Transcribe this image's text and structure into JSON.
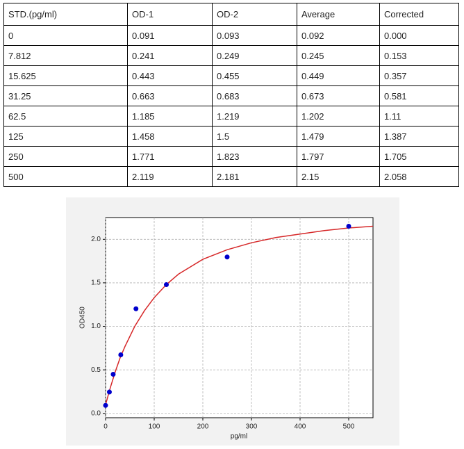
{
  "table": {
    "header": [
      "STD.(pg/ml)",
      "OD-1",
      "OD-2",
      "Average",
      "Corrected"
    ],
    "rows": [
      [
        "0",
        "0.091",
        "0.093",
        "0.092",
        "0.000"
      ],
      [
        "7.812",
        "0.241",
        "0.249",
        "0.245",
        "0.153"
      ],
      [
        "15.625",
        "0.443",
        "0.455",
        "0.449",
        "0.357"
      ],
      [
        "31.25",
        "0.663",
        "0.683",
        "0.673",
        "0.581"
      ],
      [
        "62.5",
        "1.185",
        "1.219",
        "1.202",
        "1.11"
      ],
      [
        "125",
        "1.458",
        "1.5",
        "1.479",
        "1.387"
      ],
      [
        "250",
        "1.771",
        "1.823",
        "1.797",
        "1.705"
      ],
      [
        "500",
        "2.119",
        "2.181",
        "2.15",
        "2.058"
      ]
    ]
  },
  "chart_data": {
    "type": "scatter",
    "x_label": "pg/ml",
    "y_label": "OD450",
    "xlim": [
      0,
      550
    ],
    "ylim": [
      -0.05,
      2.25
    ],
    "xticks": [
      0,
      100,
      200,
      300,
      400,
      500
    ],
    "yticks": [
      {
        "value": 0,
        "label": "0.0"
      },
      0.5,
      {
        "value": 1,
        "label": "1.0"
      },
      1.5,
      {
        "value": 2,
        "label": "2.0"
      }
    ],
    "grid": true,
    "series": [
      {
        "type": "scatter",
        "color": "#0000cc",
        "x": [
          0,
          7.812,
          15.625,
          31.25,
          62.5,
          125,
          250,
          500
        ],
        "values": [
          0.092,
          0.245,
          0.449,
          0.673,
          1.202,
          1.479,
          1.797,
          2.15
        ]
      },
      {
        "type": "line",
        "color": "#d62728",
        "x": [
          0,
          10,
          20,
          30,
          40,
          60,
          80,
          100,
          125,
          150,
          200,
          250,
          300,
          350,
          400,
          450,
          500,
          550
        ],
        "values": [
          0.1,
          0.3,
          0.48,
          0.64,
          0.77,
          1.0,
          1.18,
          1.33,
          1.48,
          1.6,
          1.77,
          1.88,
          1.96,
          2.02,
          2.06,
          2.1,
          2.13,
          2.15
        ]
      }
    ]
  }
}
